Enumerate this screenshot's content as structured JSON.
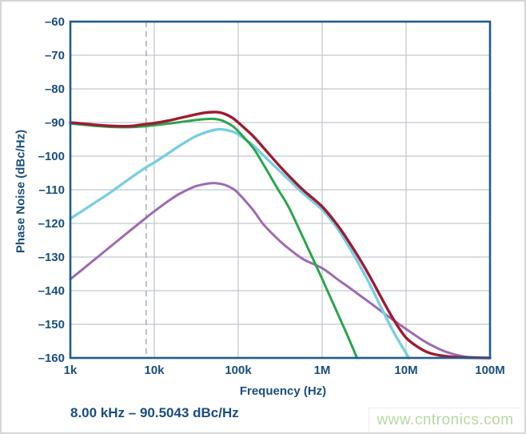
{
  "colors": {
    "label_blue": "#1b4e7f",
    "axis_frame": "#1f5c8e",
    "grid": "#c3c8d2",
    "marker_dash": "#a9adb4",
    "watermark_green": "#b8d89e",
    "background": "#ffffff"
  },
  "watermark": {
    "text": "www.cntronics.com"
  },
  "chart_data": {
    "type": "line",
    "title": "",
    "xlabel": "Frequency (Hz)",
    "ylabel": "Phase Noise (dBc/Hz)",
    "x_scale": "log",
    "xlim": [
      1000,
      100000000
    ],
    "ylim": [
      -160,
      -60
    ],
    "grid": true,
    "legend": "none",
    "annotation": "8.00 kHz – 90.5043 dBc/Hz",
    "marker_line": {
      "x": 8000,
      "style": "dashed"
    },
    "x_ticks": [
      {
        "value": 1000,
        "label": "1k"
      },
      {
        "value": 10000,
        "label": "10k"
      },
      {
        "value": 100000,
        "label": "100k"
      },
      {
        "value": 1000000,
        "label": "1M"
      },
      {
        "value": 10000000,
        "label": "10M"
      },
      {
        "value": 100000000,
        "label": "100M"
      }
    ],
    "y_ticks": [
      {
        "value": -60,
        "label": "–60"
      },
      {
        "value": -70,
        "label": "–70"
      },
      {
        "value": -80,
        "label": "–80"
      },
      {
        "value": -90,
        "label": "–90"
      },
      {
        "value": -100,
        "label": "–100"
      },
      {
        "value": -110,
        "label": "–110"
      },
      {
        "value": -120,
        "label": "–120"
      },
      {
        "value": -130,
        "label": "–130"
      },
      {
        "value": -140,
        "label": "–140"
      },
      {
        "value": -150,
        "label": "–150"
      },
      {
        "value": -160,
        "label": "–160"
      }
    ],
    "series": [
      {
        "name": "purple",
        "color": "#9c6cb4",
        "width": 3.0,
        "points": [
          [
            1000,
            -136.6
          ],
          [
            2000,
            -130.5
          ],
          [
            3000,
            -126.9
          ],
          [
            5000,
            -122.4
          ],
          [
            8000,
            -118.3
          ],
          [
            10000,
            -116.4
          ],
          [
            15000,
            -113.2
          ],
          [
            20000,
            -111.2
          ],
          [
            30000,
            -109.1
          ],
          [
            40000,
            -108.3
          ],
          [
            50000,
            -108.0
          ],
          [
            60000,
            -108.2
          ],
          [
            70000,
            -108.6
          ],
          [
            85000,
            -109.6
          ],
          [
            100000,
            -111.0
          ],
          [
            150000,
            -116.0
          ],
          [
            200000,
            -120.3
          ],
          [
            300000,
            -124.8
          ],
          [
            400000,
            -127.5
          ],
          [
            600000,
            -130.7
          ],
          [
            1000000,
            -133.3
          ],
          [
            1500000,
            -136.5
          ],
          [
            2000000,
            -138.7
          ],
          [
            3000000,
            -141.9
          ],
          [
            4000000,
            -144.2
          ],
          [
            5000000,
            -146.0
          ],
          [
            7000000,
            -148.7
          ],
          [
            10000000,
            -151.4
          ],
          [
            15000000,
            -154.4
          ],
          [
            20000000,
            -156.2
          ],
          [
            30000000,
            -158.2
          ],
          [
            50000000,
            -159.6
          ],
          [
            100000000,
            -160.0
          ]
        ]
      },
      {
        "name": "cyan",
        "color": "#79cfe2",
        "width": 3.4,
        "points": [
          [
            1000,
            -118.6
          ],
          [
            2000,
            -113.7
          ],
          [
            3000,
            -110.8
          ],
          [
            5000,
            -106.8
          ],
          [
            8000,
            -103.3
          ],
          [
            10000,
            -101.9
          ],
          [
            15000,
            -99.0
          ],
          [
            20000,
            -96.9
          ],
          [
            30000,
            -94.3
          ],
          [
            40000,
            -93.0
          ],
          [
            50000,
            -92.3
          ],
          [
            60000,
            -92.0
          ],
          [
            70000,
            -92.2
          ],
          [
            85000,
            -92.7
          ],
          [
            100000,
            -93.5
          ],
          [
            150000,
            -96.8
          ],
          [
            200000,
            -99.8
          ],
          [
            300000,
            -104.0
          ],
          [
            400000,
            -107.0
          ],
          [
            600000,
            -111.2
          ],
          [
            1000000,
            -115.9
          ],
          [
            1500000,
            -121.3
          ],
          [
            2000000,
            -126.2
          ],
          [
            3000000,
            -133.8
          ],
          [
            4000000,
            -139.8
          ],
          [
            5000000,
            -144.8
          ],
          [
            7000000,
            -152.0
          ],
          [
            10000000,
            -158.6
          ],
          [
            10800000,
            -160.0
          ]
        ]
      },
      {
        "name": "green",
        "color": "#2aa64b",
        "width": 3.0,
        "points": [
          [
            1000,
            -90.3
          ],
          [
            2000,
            -91.0
          ],
          [
            3000,
            -91.3
          ],
          [
            5000,
            -91.4
          ],
          [
            8000,
            -91.1
          ],
          [
            10000,
            -90.8
          ],
          [
            15000,
            -90.3
          ],
          [
            20000,
            -89.9
          ],
          [
            30000,
            -89.3
          ],
          [
            40000,
            -89.0
          ],
          [
            50000,
            -88.9
          ],
          [
            60000,
            -89.2
          ],
          [
            70000,
            -89.8
          ],
          [
            85000,
            -91.0
          ],
          [
            100000,
            -92.6
          ],
          [
            150000,
            -97.5
          ],
          [
            200000,
            -102.5
          ],
          [
            300000,
            -110.0
          ],
          [
            400000,
            -115.2
          ],
          [
            600000,
            -124.5
          ],
          [
            1000000,
            -136.5
          ],
          [
            1500000,
            -146.3
          ],
          [
            2000000,
            -153.3
          ],
          [
            2600000,
            -160.0
          ]
        ]
      },
      {
        "name": "dark-red",
        "color": "#9e1b32",
        "width": 3.4,
        "points": [
          [
            1000,
            -90.0
          ],
          [
            1500,
            -90.4
          ],
          [
            2000,
            -90.7
          ],
          [
            3000,
            -91.0
          ],
          [
            5000,
            -91.1
          ],
          [
            8000,
            -90.5
          ],
          [
            10000,
            -90.2
          ],
          [
            15000,
            -89.4
          ],
          [
            20000,
            -88.7
          ],
          [
            30000,
            -87.7
          ],
          [
            40000,
            -87.1
          ],
          [
            50000,
            -86.9
          ],
          [
            60000,
            -87.0
          ],
          [
            70000,
            -87.5
          ],
          [
            85000,
            -88.6
          ],
          [
            100000,
            -90.0
          ],
          [
            150000,
            -94.0
          ],
          [
            200000,
            -97.5
          ],
          [
            300000,
            -102.5
          ],
          [
            400000,
            -105.8
          ],
          [
            600000,
            -110.2
          ],
          [
            1000000,
            -115.0
          ],
          [
            1500000,
            -120.3
          ],
          [
            2000000,
            -124.8
          ],
          [
            3000000,
            -131.8
          ],
          [
            4000000,
            -137.3
          ],
          [
            5000000,
            -141.8
          ],
          [
            7000000,
            -148.3
          ],
          [
            10000000,
            -154.0
          ],
          [
            15000000,
            -157.3
          ],
          [
            20000000,
            -158.7
          ],
          [
            30000000,
            -159.5
          ],
          [
            50000000,
            -159.9
          ],
          [
            100000000,
            -160.0
          ]
        ]
      }
    ]
  }
}
